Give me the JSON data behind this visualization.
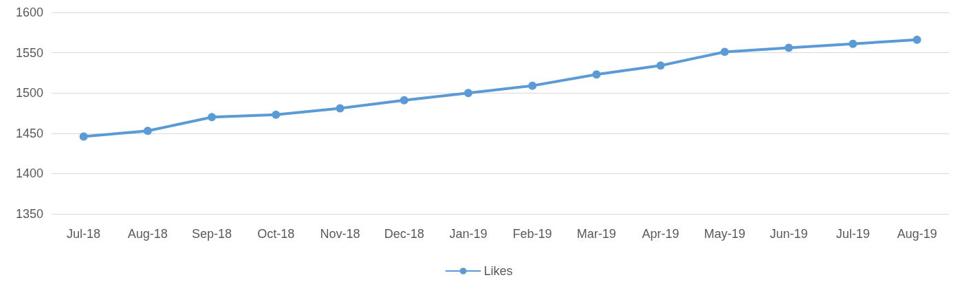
{
  "chart_data": {
    "type": "line",
    "categories": [
      "Jul-18",
      "Aug-18",
      "Sep-18",
      "Oct-18",
      "Nov-18",
      "Dec-18",
      "Jan-19",
      "Feb-19",
      "Mar-19",
      "Apr-19",
      "May-19",
      "Jun-19",
      "Jul-19",
      "Aug-19"
    ],
    "series": [
      {
        "name": "Likes",
        "color": "#5b9bd5",
        "values": [
          1446,
          1453,
          1470,
          1473,
          1481,
          1491,
          1500,
          1509,
          1523,
          1534,
          1551,
          1556,
          1561,
          1566
        ]
      }
    ],
    "ylim": [
      1350,
      1600
    ],
    "yticks": [
      1350,
      1400,
      1450,
      1500,
      1550,
      1600
    ],
    "grid": "y",
    "legend": "bottom",
    "marker": "circle",
    "line_style": "solid"
  }
}
